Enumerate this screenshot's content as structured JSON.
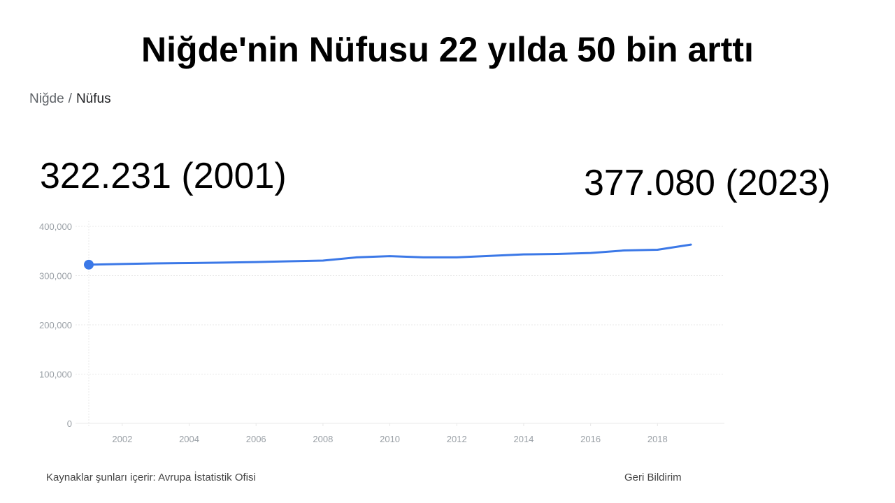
{
  "headline": "Niğde'nin Nüfusu 22 yılda 50 bin arttı",
  "breadcrumb": {
    "parent": "Niğde",
    "separator": "/",
    "current": "Nüfus"
  },
  "callouts": {
    "start": "322.231 (2001)",
    "end": "377.080 (2023)"
  },
  "footer": {
    "source": "Kaynaklar şunları içerir: Avrupa İstatistik Ofisi",
    "feedback": "Geri Bildirim"
  },
  "colors": {
    "line": "#3b78e7",
    "grid": "#e8e8e8",
    "tick": "#9aa0a6"
  },
  "chart_data": {
    "type": "line",
    "title": "",
    "xlabel": "",
    "ylabel": "",
    "x_ticks": [
      "2002",
      "2004",
      "2006",
      "2008",
      "2010",
      "2012",
      "2014",
      "2016",
      "2018"
    ],
    "y_ticks": [
      "0",
      "100,000",
      "200,000",
      "300,000",
      "400,000"
    ],
    "xlim": [
      2001,
      2020
    ],
    "ylim": [
      0,
      400000
    ],
    "grid": true,
    "legend": "none",
    "series": [
      {
        "x": [
          2001,
          2002,
          2003,
          2004,
          2005,
          2006,
          2007,
          2008,
          2009,
          2010,
          2011,
          2012,
          2013,
          2014,
          2015,
          2016,
          2017,
          2018,
          2019
        ],
        "values": [
          322231,
          323500,
          324800,
          325600,
          326500,
          327500,
          329000,
          330500,
          337000,
          339500,
          337000,
          337000,
          340000,
          343000,
          344000,
          346000,
          351000,
          352500,
          363000
        ],
        "highlight_first": true
      }
    ]
  }
}
